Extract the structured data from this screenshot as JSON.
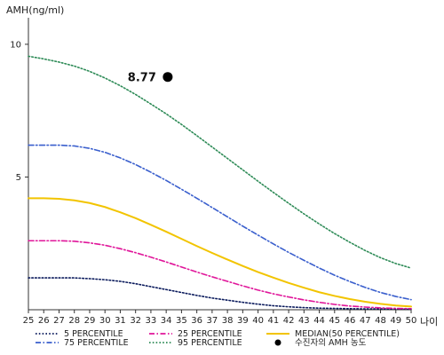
{
  "chart_data": {
    "type": "line",
    "ylabel": "AMH(ng/ml)",
    "xlabel": "나이",
    "xlim": [
      25,
      50
    ],
    "ylim": [
      0,
      11
    ],
    "x_ticks": [
      25,
      26,
      27,
      28,
      29,
      30,
      31,
      32,
      33,
      34,
      35,
      36,
      37,
      38,
      39,
      40,
      41,
      42,
      43,
      44,
      45,
      46,
      47,
      48,
      49,
      50
    ],
    "y_ticks": [
      5,
      10
    ],
    "x": [
      25,
      26,
      27,
      28,
      29,
      30,
      31,
      32,
      33,
      34,
      35,
      36,
      37,
      38,
      39,
      40,
      41,
      42,
      43,
      44,
      45,
      46,
      47,
      48,
      49,
      50
    ],
    "series": [
      {
        "name": "5 PERCENTILE",
        "color": "#0a1a5c",
        "dash": "dot",
        "values": [
          1.2,
          1.2,
          1.2,
          1.2,
          1.17,
          1.13,
          1.07,
          0.98,
          0.87,
          0.76,
          0.65,
          0.54,
          0.44,
          0.36,
          0.28,
          0.21,
          0.15,
          0.11,
          0.08,
          0.06,
          0.05,
          0.04,
          0.03,
          0.03,
          0.03,
          0.02
        ]
      },
      {
        "name": "25 PERCENTILE",
        "color": "#e0169a",
        "dash": "dashdot",
        "values": [
          2.6,
          2.6,
          2.6,
          2.58,
          2.52,
          2.43,
          2.3,
          2.15,
          1.98,
          1.8,
          1.61,
          1.42,
          1.24,
          1.07,
          0.9,
          0.74,
          0.6,
          0.48,
          0.37,
          0.28,
          0.2,
          0.14,
          0.1,
          0.07,
          0.05,
          0.04
        ]
      },
      {
        "name": "MEDIAN(50 PERCENTILE)",
        "color": "#f2c400",
        "dash": "solid",
        "values": [
          4.2,
          4.2,
          4.18,
          4.12,
          4.02,
          3.87,
          3.67,
          3.45,
          3.2,
          2.94,
          2.67,
          2.4,
          2.14,
          1.89,
          1.65,
          1.42,
          1.21,
          1.01,
          0.83,
          0.66,
          0.52,
          0.4,
          0.3,
          0.22,
          0.16,
          0.12
        ]
      },
      {
        "name": "75 PERCENTILE",
        "color": "#3a5fcd",
        "dash": "dashdot",
        "values": [
          6.2,
          6.2,
          6.2,
          6.17,
          6.08,
          5.93,
          5.72,
          5.47,
          5.18,
          4.87,
          4.54,
          4.2,
          3.85,
          3.5,
          3.15,
          2.81,
          2.48,
          2.16,
          1.86,
          1.57,
          1.3,
          1.06,
          0.84,
          0.65,
          0.5,
          0.38
        ]
      },
      {
        "name": "95 PERCENTILE",
        "color": "#2e8b57",
        "dash": "dot",
        "values": [
          9.55,
          9.45,
          9.33,
          9.18,
          8.98,
          8.73,
          8.44,
          8.11,
          7.75,
          7.38,
          6.98,
          6.56,
          6.13,
          5.7,
          5.27,
          4.84,
          4.42,
          4.01,
          3.61,
          3.23,
          2.87,
          2.54,
          2.23,
          1.96,
          1.74,
          1.57
        ]
      }
    ],
    "highlight": {
      "name": "수진자의 AMH 농도",
      "x": 34.1,
      "y": 8.77,
      "label": "8.77",
      "color": "#000000"
    },
    "legend_position": "bottom",
    "legend_order": [
      "5 PERCENTILE",
      "25 PERCENTILE",
      "MEDIAN(50 PERCENTILE)",
      "75 PERCENTILE",
      "95 PERCENTILE",
      "수진자의 AMH 농도"
    ],
    "grid": false
  }
}
